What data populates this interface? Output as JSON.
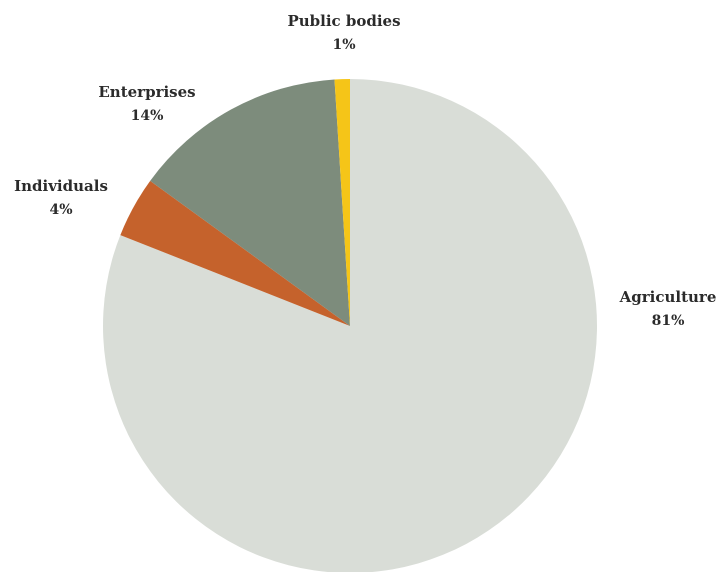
{
  "chart_data": {
    "type": "pie",
    "slices": [
      {
        "label": "Agriculture",
        "value": 81,
        "value_label": "81%",
        "color": "#d9ddd7"
      },
      {
        "label": "Individuals",
        "value": 4,
        "value_label": "4%",
        "color": "#c5622c"
      },
      {
        "label": "Enterprises",
        "value": 14,
        "value_label": "14%",
        "color": "#7d8c7c"
      },
      {
        "label": "Public bodies",
        "value": 1,
        "value_label": "1%",
        "color": "#f5c518"
      }
    ],
    "start_angle_deg": 0,
    "direction": "clockwise"
  }
}
